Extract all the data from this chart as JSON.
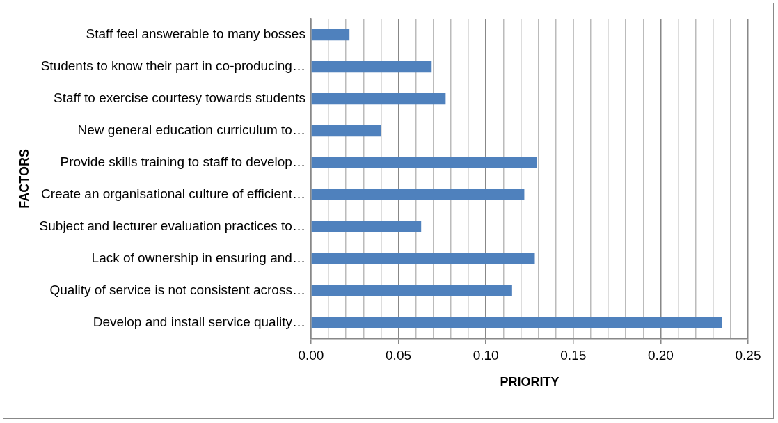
{
  "chart_data": {
    "type": "bar",
    "orientation": "horizontal",
    "xlabel": "PRIORITY",
    "ylabel": "FACTORS",
    "categories": [
      "Staff feel answerable to many bosses",
      "Students to know their part in co-producing…",
      "Staff to exercise courtesy towards students",
      "New general education curriculum to…",
      "Provide skills training to staff to develop…",
      "Create an organisational culture of efficient…",
      "Subject and lecturer evaluation practices to…",
      "Lack of ownership in ensuring and…",
      "Quality of service is not consistent across…",
      "Develop and install service quality…"
    ],
    "values": [
      0.022,
      0.069,
      0.077,
      0.04,
      0.129,
      0.122,
      0.063,
      0.128,
      0.115,
      0.235
    ],
    "color": "#4f81bd",
    "xlim": [
      0,
      0.25
    ],
    "xticks": [
      "0.00",
      {
        "value": 0.01,
        "label": null
      },
      {
        "value": 0.02,
        "label": null
      },
      {
        "value": 0.03,
        "label": null
      },
      {
        "value": 0.04,
        "label": null
      },
      {
        "value": 0.05,
        "label": "0.05"
      },
      {
        "value": 0.06,
        "label": null
      },
      {
        "value": 0.07,
        "label": null
      },
      {
        "value": 0.08,
        "label": null
      },
      {
        "value": 0.09,
        "label": null
      },
      {
        "value": 0.1,
        "label": "0.10"
      },
      {
        "value": 0.11,
        "label": null
      },
      {
        "value": 0.12,
        "label": null
      },
      {
        "value": 0.13,
        "label": null
      },
      {
        "value": 0.14,
        "label": null
      },
      {
        "value": 0.15,
        "label": "0.15"
      },
      {
        "value": 0.16,
        "label": null
      },
      {
        "value": 0.17,
        "label": null
      },
      {
        "value": 0.18,
        "label": null
      },
      {
        "value": 0.19,
        "label": null
      },
      {
        "value": 0.2,
        "label": "0.20"
      },
      {
        "value": 0.21,
        "label": null
      },
      {
        "value": 0.22,
        "label": null
      },
      {
        "value": 0.23,
        "label": null
      },
      {
        "value": 0.24,
        "label": null
      },
      {
        "value": 0.25,
        "label": "0.25"
      }
    ],
    "grid": "x",
    "legend": false
  }
}
